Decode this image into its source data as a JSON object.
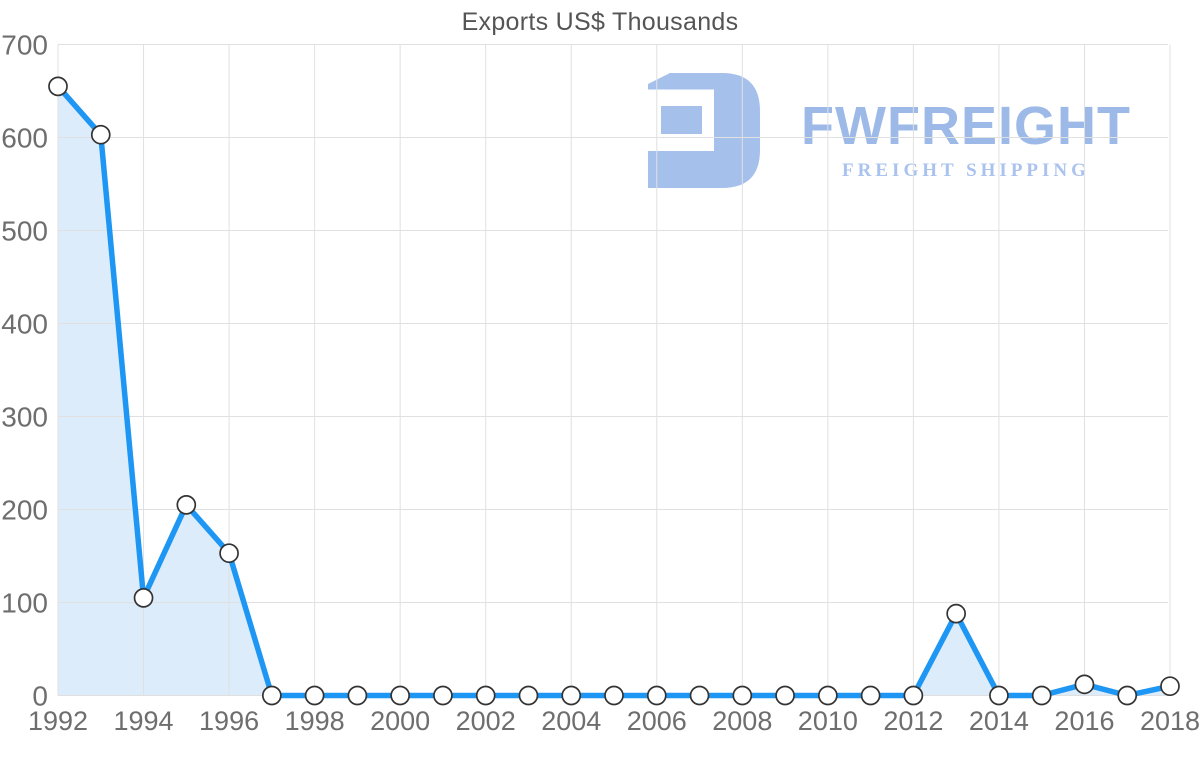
{
  "chart": {
    "title": "Exports US$ Thousands"
  },
  "watermark": {
    "brand": "FWFREIGHT",
    "tagline": "FREIGHT SHIPPING"
  },
  "colors": {
    "line": "#1e96f3",
    "area_fill": "#dcecfb",
    "grid": "#e0e0e0",
    "tick_label": "#6e6e6e",
    "title": "#555555",
    "marker_fill": "#ffffff",
    "marker_stroke": "#333333",
    "watermark_mark": "#a6c0ec",
    "watermark_brand": "#9db9e8",
    "watermark_tagline": "#a9c2ee"
  },
  "chart_data": {
    "type": "area",
    "title": "Exports US$ Thousands",
    "xlabel": "",
    "ylabel": "",
    "x": [
      1992,
      1993,
      1994,
      1995,
      1996,
      1997,
      1998,
      1999,
      2000,
      2001,
      2002,
      2003,
      2004,
      2005,
      2006,
      2007,
      2008,
      2009,
      2010,
      2011,
      2012,
      2013,
      2014,
      2015,
      2016,
      2017,
      2018
    ],
    "values": [
      655,
      603,
      105,
      205,
      153,
      0,
      0,
      0,
      0,
      0,
      0,
      0,
      0,
      0,
      0,
      0,
      0,
      0,
      0,
      0,
      0,
      88,
      0,
      0,
      12,
      0,
      10
    ],
    "series_name": "Exports US$ Thousands",
    "ylim": [
      0,
      700
    ],
    "ytick_step": 100,
    "ytick_labels": [
      "0",
      "100",
      "200",
      "300",
      "400",
      "500",
      "600",
      "700"
    ],
    "xtick_step": 2,
    "xtick_labels": [
      "1992",
      "1994",
      "1996",
      "1998",
      "2000",
      "2002",
      "2004",
      "2006",
      "2008",
      "2010",
      "2012",
      "2014",
      "2016",
      "2018"
    ],
    "grid": true,
    "legend": false,
    "marker": "circle"
  }
}
